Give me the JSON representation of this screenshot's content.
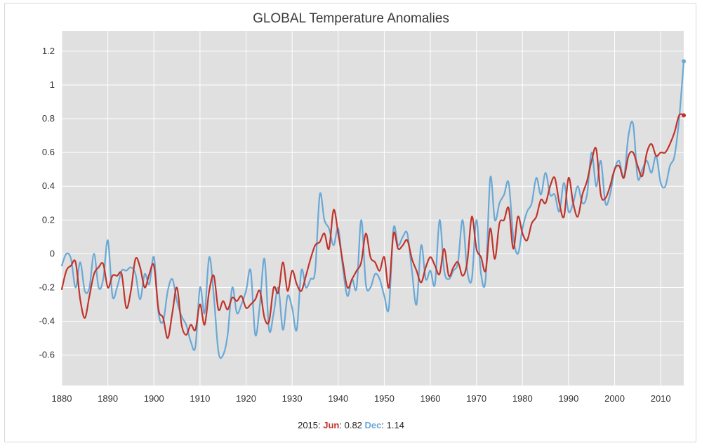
{
  "chart_data": {
    "type": "line",
    "title": "GLOBAL Temperature Anomalies",
    "xlabel": "",
    "ylabel": "",
    "xlim": [
      1880,
      2015
    ],
    "ylim": [
      -0.78,
      1.32
    ],
    "x_ticks": [
      1880,
      1890,
      1900,
      1910,
      1920,
      1930,
      1940,
      1950,
      1960,
      1970,
      1980,
      1990,
      2000,
      2010
    ],
    "y_ticks": [
      -0.6,
      -0.4,
      -0.2,
      0,
      0.2,
      0.4,
      0.6,
      0.8,
      1,
      1.2
    ],
    "y_tick_labels": [
      "-0.6",
      "-0.4",
      "-0.2",
      "0",
      "0.2",
      "0.4",
      "0.6",
      "0.8",
      "1",
      "1.2"
    ],
    "grid": true,
    "background": "#e0e0e0",
    "series": [
      {
        "name": "Jun",
        "color": "#c0342b",
        "x": [
          1880,
          1881,
          1882,
          1883,
          1884,
          1885,
          1886,
          1887,
          1888,
          1889,
          1890,
          1891,
          1892,
          1893,
          1894,
          1895,
          1896,
          1897,
          1898,
          1899,
          1900,
          1901,
          1902,
          1903,
          1904,
          1905,
          1906,
          1907,
          1908,
          1909,
          1910,
          1911,
          1912,
          1913,
          1914,
          1915,
          1916,
          1917,
          1918,
          1919,
          1920,
          1921,
          1922,
          1923,
          1924,
          1925,
          1926,
          1927,
          1928,
          1929,
          1930,
          1931,
          1932,
          1933,
          1934,
          1935,
          1936,
          1937,
          1938,
          1939,
          1940,
          1941,
          1942,
          1943,
          1944,
          1945,
          1946,
          1947,
          1948,
          1949,
          1950,
          1951,
          1952,
          1953,
          1954,
          1955,
          1956,
          1957,
          1958,
          1959,
          1960,
          1961,
          1962,
          1963,
          1964,
          1965,
          1966,
          1967,
          1968,
          1969,
          1970,
          1971,
          1972,
          1973,
          1974,
          1975,
          1976,
          1977,
          1978,
          1979,
          1980,
          1981,
          1982,
          1983,
          1984,
          1985,
          1986,
          1987,
          1988,
          1989,
          1990,
          1991,
          1992,
          1993,
          1994,
          1995,
          1996,
          1997,
          1998,
          1999,
          2000,
          2001,
          2002,
          2003,
          2004,
          2005,
          2006,
          2007,
          2008,
          2009,
          2010,
          2011,
          2012,
          2013,
          2014,
          2015
        ],
        "values": [
          -0.21,
          -0.1,
          -0.07,
          -0.05,
          -0.27,
          -0.38,
          -0.25,
          -0.12,
          -0.08,
          -0.06,
          -0.2,
          -0.13,
          -0.13,
          -0.12,
          -0.32,
          -0.22,
          -0.03,
          -0.08,
          -0.2,
          -0.12,
          -0.07,
          -0.33,
          -0.38,
          -0.5,
          -0.35,
          -0.2,
          -0.42,
          -0.48,
          -0.42,
          -0.45,
          -0.3,
          -0.42,
          -0.22,
          -0.13,
          -0.33,
          -0.28,
          -0.33,
          -0.26,
          -0.28,
          -0.25,
          -0.32,
          -0.3,
          -0.27,
          -0.22,
          -0.38,
          -0.4,
          -0.2,
          -0.23,
          -0.05,
          -0.22,
          -0.1,
          -0.18,
          -0.22,
          -0.13,
          -0.03,
          0.05,
          0.07,
          0.12,
          0.03,
          0.26,
          0.12,
          -0.05,
          -0.2,
          -0.15,
          -0.1,
          -0.05,
          0.12,
          -0.02,
          -0.05,
          -0.1,
          -0.02,
          -0.2,
          0.12,
          0.03,
          0.05,
          0.08,
          -0.03,
          -0.1,
          -0.17,
          -0.08,
          -0.02,
          -0.07,
          -0.12,
          0.03,
          -0.13,
          -0.08,
          -0.05,
          -0.13,
          -0.05,
          0.22,
          0.03,
          -0.02,
          -0.1,
          0.15,
          -0.03,
          0.18,
          0.2,
          0.27,
          0.03,
          0.22,
          0.12,
          0.08,
          0.18,
          0.22,
          0.32,
          0.3,
          0.4,
          0.45,
          0.3,
          0.22,
          0.45,
          0.3,
          0.22,
          0.35,
          0.43,
          0.55,
          0.62,
          0.35,
          0.33,
          0.4,
          0.5,
          0.52,
          0.45,
          0.58,
          0.6,
          0.52,
          0.46,
          0.6,
          0.65,
          0.58,
          0.6,
          0.6,
          0.65,
          0.72,
          0.82,
          0.82
        ]
      },
      {
        "name": "Dec",
        "color": "#6aa8d6",
        "x": [
          1880,
          1881,
          1882,
          1883,
          1884,
          1885,
          1886,
          1887,
          1888,
          1889,
          1890,
          1891,
          1892,
          1893,
          1894,
          1895,
          1896,
          1897,
          1898,
          1899,
          1900,
          1901,
          1902,
          1903,
          1904,
          1905,
          1906,
          1907,
          1908,
          1909,
          1910,
          1911,
          1912,
          1913,
          1914,
          1915,
          1916,
          1917,
          1918,
          1919,
          1920,
          1921,
          1922,
          1923,
          1924,
          1925,
          1926,
          1927,
          1928,
          1929,
          1930,
          1931,
          1932,
          1933,
          1934,
          1935,
          1936,
          1937,
          1938,
          1939,
          1940,
          1941,
          1942,
          1943,
          1944,
          1945,
          1946,
          1947,
          1948,
          1949,
          1950,
          1951,
          1952,
          1953,
          1954,
          1955,
          1956,
          1957,
          1958,
          1959,
          1960,
          1961,
          1962,
          1963,
          1964,
          1965,
          1966,
          1967,
          1968,
          1969,
          1970,
          1971,
          1972,
          1973,
          1974,
          1975,
          1976,
          1977,
          1978,
          1979,
          1980,
          1981,
          1982,
          1983,
          1984,
          1985,
          1986,
          1987,
          1988,
          1989,
          1990,
          1991,
          1992,
          1993,
          1994,
          1995,
          1996,
          1997,
          1998,
          1999,
          2000,
          2001,
          2002,
          2003,
          2004,
          2005,
          2006,
          2007,
          2008,
          2009,
          2010,
          2011,
          2012,
          2013,
          2014,
          2015
        ],
        "values": [
          -0.07,
          0.0,
          -0.03,
          -0.2,
          -0.05,
          -0.22,
          -0.2,
          0.0,
          -0.2,
          -0.15,
          0.08,
          -0.25,
          -0.2,
          -0.1,
          -0.1,
          -0.08,
          -0.12,
          -0.27,
          -0.12,
          -0.18,
          -0.02,
          -0.35,
          -0.4,
          -0.22,
          -0.15,
          -0.28,
          -0.37,
          -0.42,
          -0.52,
          -0.55,
          -0.2,
          -0.35,
          -0.02,
          -0.25,
          -0.58,
          -0.6,
          -0.48,
          -0.2,
          -0.35,
          -0.3,
          -0.22,
          -0.1,
          -0.48,
          -0.3,
          -0.03,
          -0.45,
          -0.35,
          -0.2,
          -0.45,
          -0.25,
          -0.32,
          -0.45,
          -0.1,
          -0.2,
          -0.15,
          -0.1,
          0.35,
          0.2,
          0.15,
          0.05,
          0.15,
          -0.08,
          -0.25,
          -0.15,
          -0.2,
          0.2,
          -0.18,
          -0.2,
          -0.12,
          -0.15,
          -0.25,
          -0.32,
          0.15,
          0.05,
          0.1,
          0.12,
          -0.1,
          -0.3,
          0.05,
          -0.15,
          -0.1,
          -0.18,
          0.2,
          -0.1,
          -0.15,
          -0.1,
          -0.05,
          0.2,
          -0.1,
          -0.15,
          0.2,
          -0.12,
          -0.15,
          0.45,
          0.2,
          0.3,
          0.35,
          0.42,
          0.1,
          0.0,
          0.15,
          0.25,
          0.3,
          0.45,
          0.35,
          0.48,
          0.35,
          0.35,
          0.25,
          0.42,
          0.25,
          0.3,
          0.4,
          0.3,
          0.35,
          0.6,
          0.4,
          0.55,
          0.3,
          0.35,
          0.5,
          0.55,
          0.45,
          0.7,
          0.77,
          0.45,
          0.5,
          0.55,
          0.48,
          0.58,
          0.42,
          0.4,
          0.52,
          0.58,
          0.8,
          1.14
        ]
      }
    ]
  },
  "footer": {
    "prefix": "2015: ",
    "jun_label": "Jun",
    "jun_value": ": 0.82 ",
    "dec_label": "Dec",
    "dec_value": ": 1.14"
  }
}
